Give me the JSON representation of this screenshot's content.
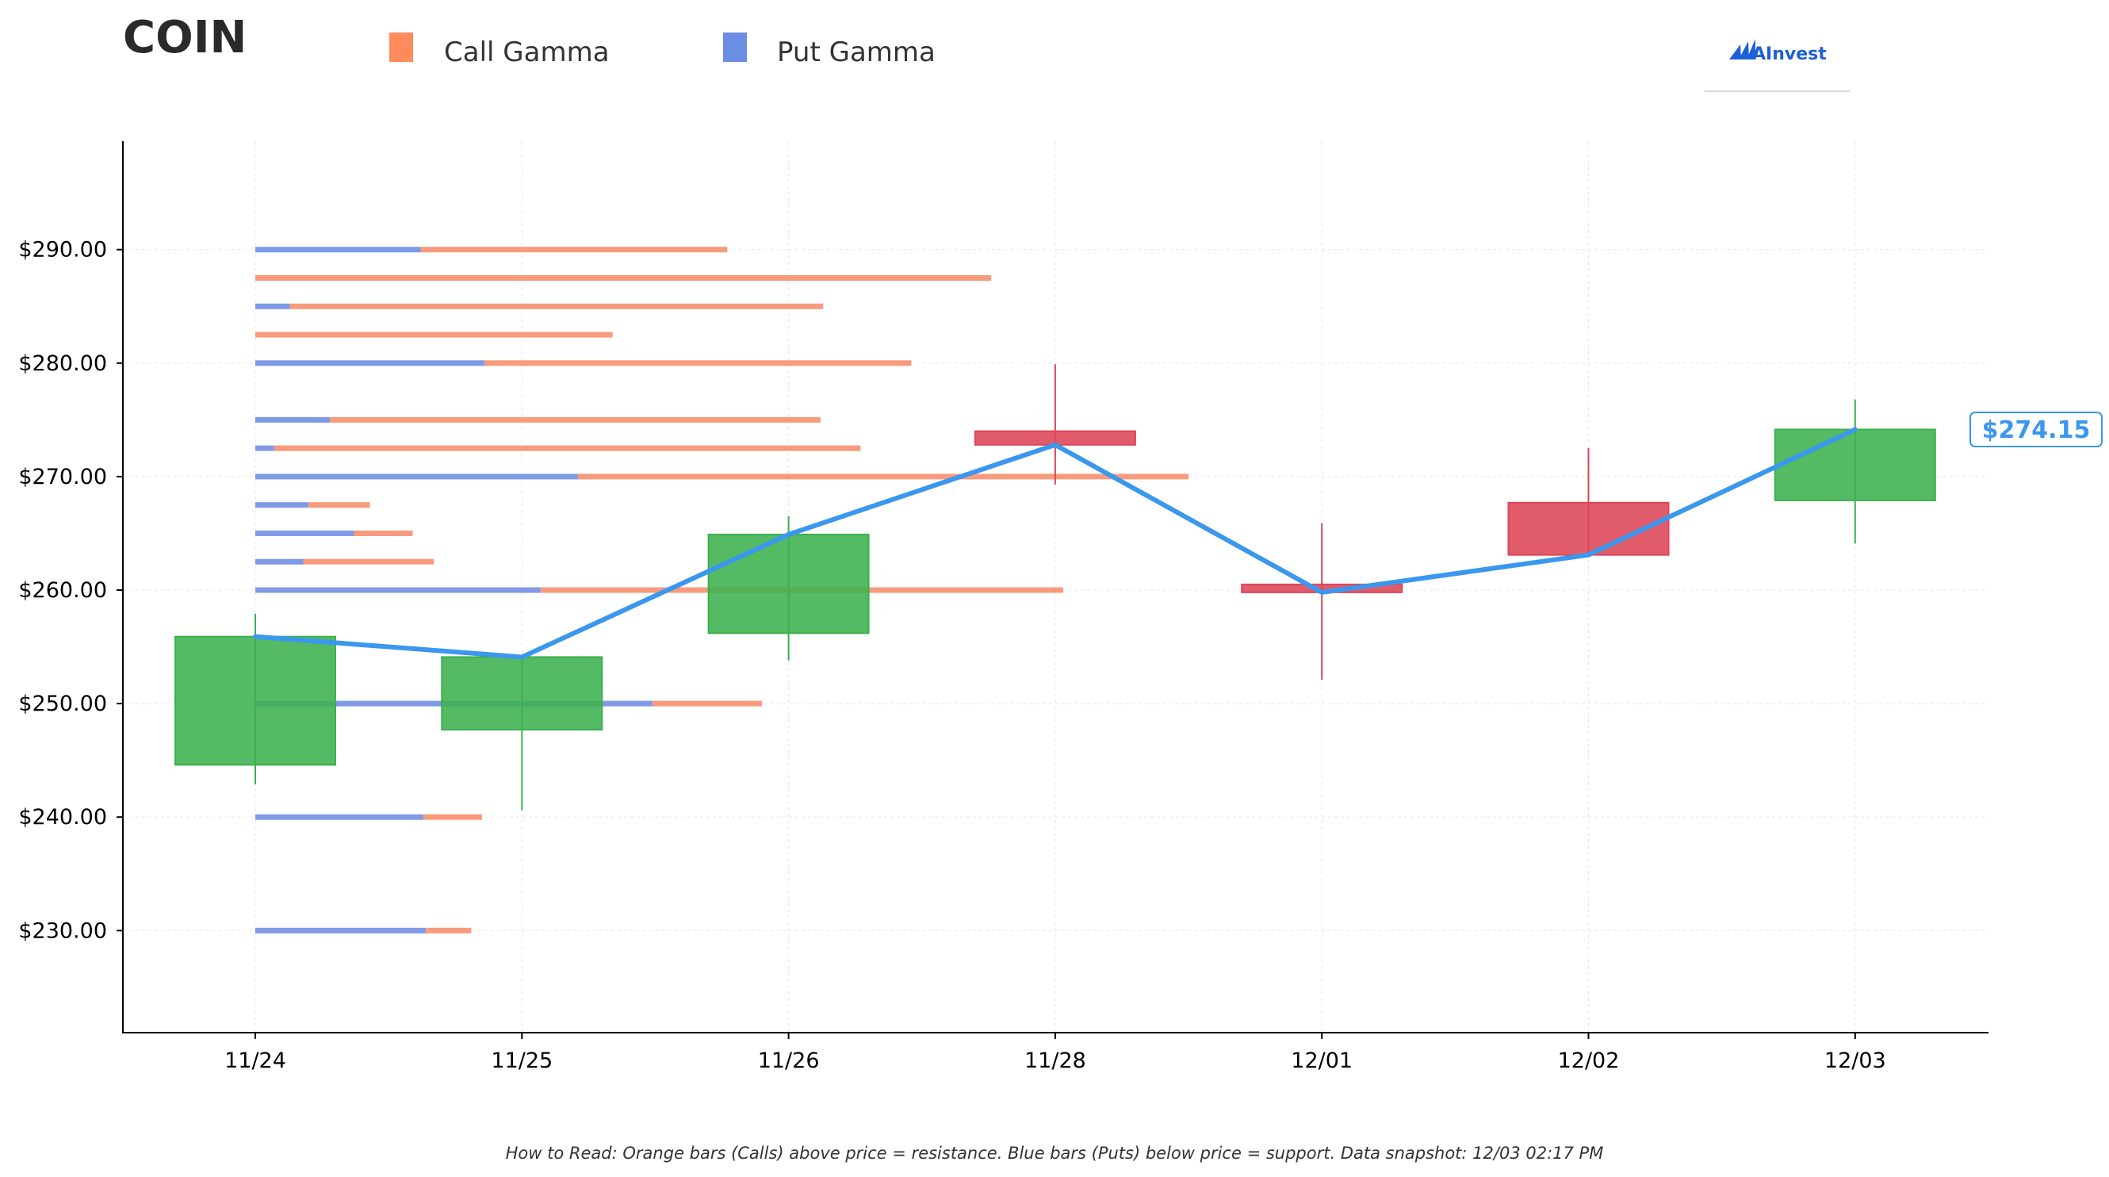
{
  "title": "COIN",
  "legend": [
    {
      "label": "Call Gamma",
      "color": "#ff8a5b"
    },
    {
      "label": "Put Gamma",
      "color": "#6b8de3"
    }
  ],
  "brand": {
    "name": "AInvest",
    "color": "#1f5fd6"
  },
  "footer": "How to Read: Orange bars (Calls) above price = resistance. Blue bars (Puts) below price = support. Data snapshot: 12/03 02:17 PM",
  "colors": {
    "up": "#3cb04e",
    "down": "#dd4556",
    "price_line": "#3b97ee",
    "call_bar": "#f79b7c",
    "put_bar": "#7f9ae6",
    "axis": "#000000",
    "grid": "#e8e8e8"
  },
  "chart_data": {
    "type": "candlestick",
    "title": "COIN",
    "categories": [
      "11/24",
      "11/25",
      "11/26",
      "11/28",
      "12/01",
      "12/02",
      "12/03"
    ],
    "ylim": [
      221,
      299
    ],
    "yticks": [
      230,
      240,
      250,
      260,
      270,
      280,
      290
    ],
    "ytick_labels": [
      "$230.00",
      "$240.00",
      "$250.00",
      "$260.00",
      "$270.00",
      "$280.00",
      "$290.00"
    ],
    "grid": true,
    "legend_position": "top-left",
    "candles": [
      {
        "date": "11/24",
        "open": 244.6,
        "high": 257.9,
        "low": 242.9,
        "close": 255.9
      },
      {
        "date": "11/25",
        "open": 247.7,
        "high": 254.1,
        "low": 240.6,
        "close": 254.1
      },
      {
        "date": "11/26",
        "open": 256.2,
        "high": 266.5,
        "low": 253.8,
        "close": 264.9
      },
      {
        "date": "11/28",
        "open": 274.0,
        "high": 279.9,
        "low": 269.3,
        "close": 272.8
      },
      {
        "date": "12/01",
        "open": 260.5,
        "high": 265.9,
        "low": 252.1,
        "close": 259.8
      },
      {
        "date": "12/02",
        "open": 267.7,
        "high": 272.5,
        "low": 263.1,
        "close": 263.1
      },
      {
        "date": "12/03",
        "open": 267.9,
        "high": 276.8,
        "low": 264.1,
        "close": 274.15
      }
    ],
    "last_price_label": "$274.15",
    "gamma_strikes_unit": "category-widths",
    "gamma_strikes": [
      {
        "strike": 290.0,
        "put": 0.62,
        "call": 1.15
      },
      {
        "strike": 287.5,
        "put": 0.0,
        "call": 2.76
      },
      {
        "strike": 285.0,
        "put": 0.13,
        "call": 2.0
      },
      {
        "strike": 282.5,
        "put": 0.0,
        "call": 1.34
      },
      {
        "strike": 280.0,
        "put": 0.86,
        "call": 1.6
      },
      {
        "strike": 275.0,
        "put": 0.28,
        "call": 1.84
      },
      {
        "strike": 272.5,
        "put": 0.07,
        "call": 2.2
      },
      {
        "strike": 270.0,
        "put": 1.21,
        "call": 2.29
      },
      {
        "strike": 267.5,
        "put": 0.2,
        "call": 0.23
      },
      {
        "strike": 265.0,
        "put": 0.37,
        "call": 0.22
      },
      {
        "strike": 262.5,
        "put": 0.18,
        "call": 0.49
      },
      {
        "strike": 260.0,
        "put": 1.07,
        "call": 1.96
      },
      {
        "strike": 250.0,
        "put": 1.49,
        "call": 0.41
      },
      {
        "strike": 240.0,
        "put": 0.63,
        "call": 0.22
      },
      {
        "strike": 230.0,
        "put": 0.64,
        "call": 0.17
      }
    ]
  }
}
